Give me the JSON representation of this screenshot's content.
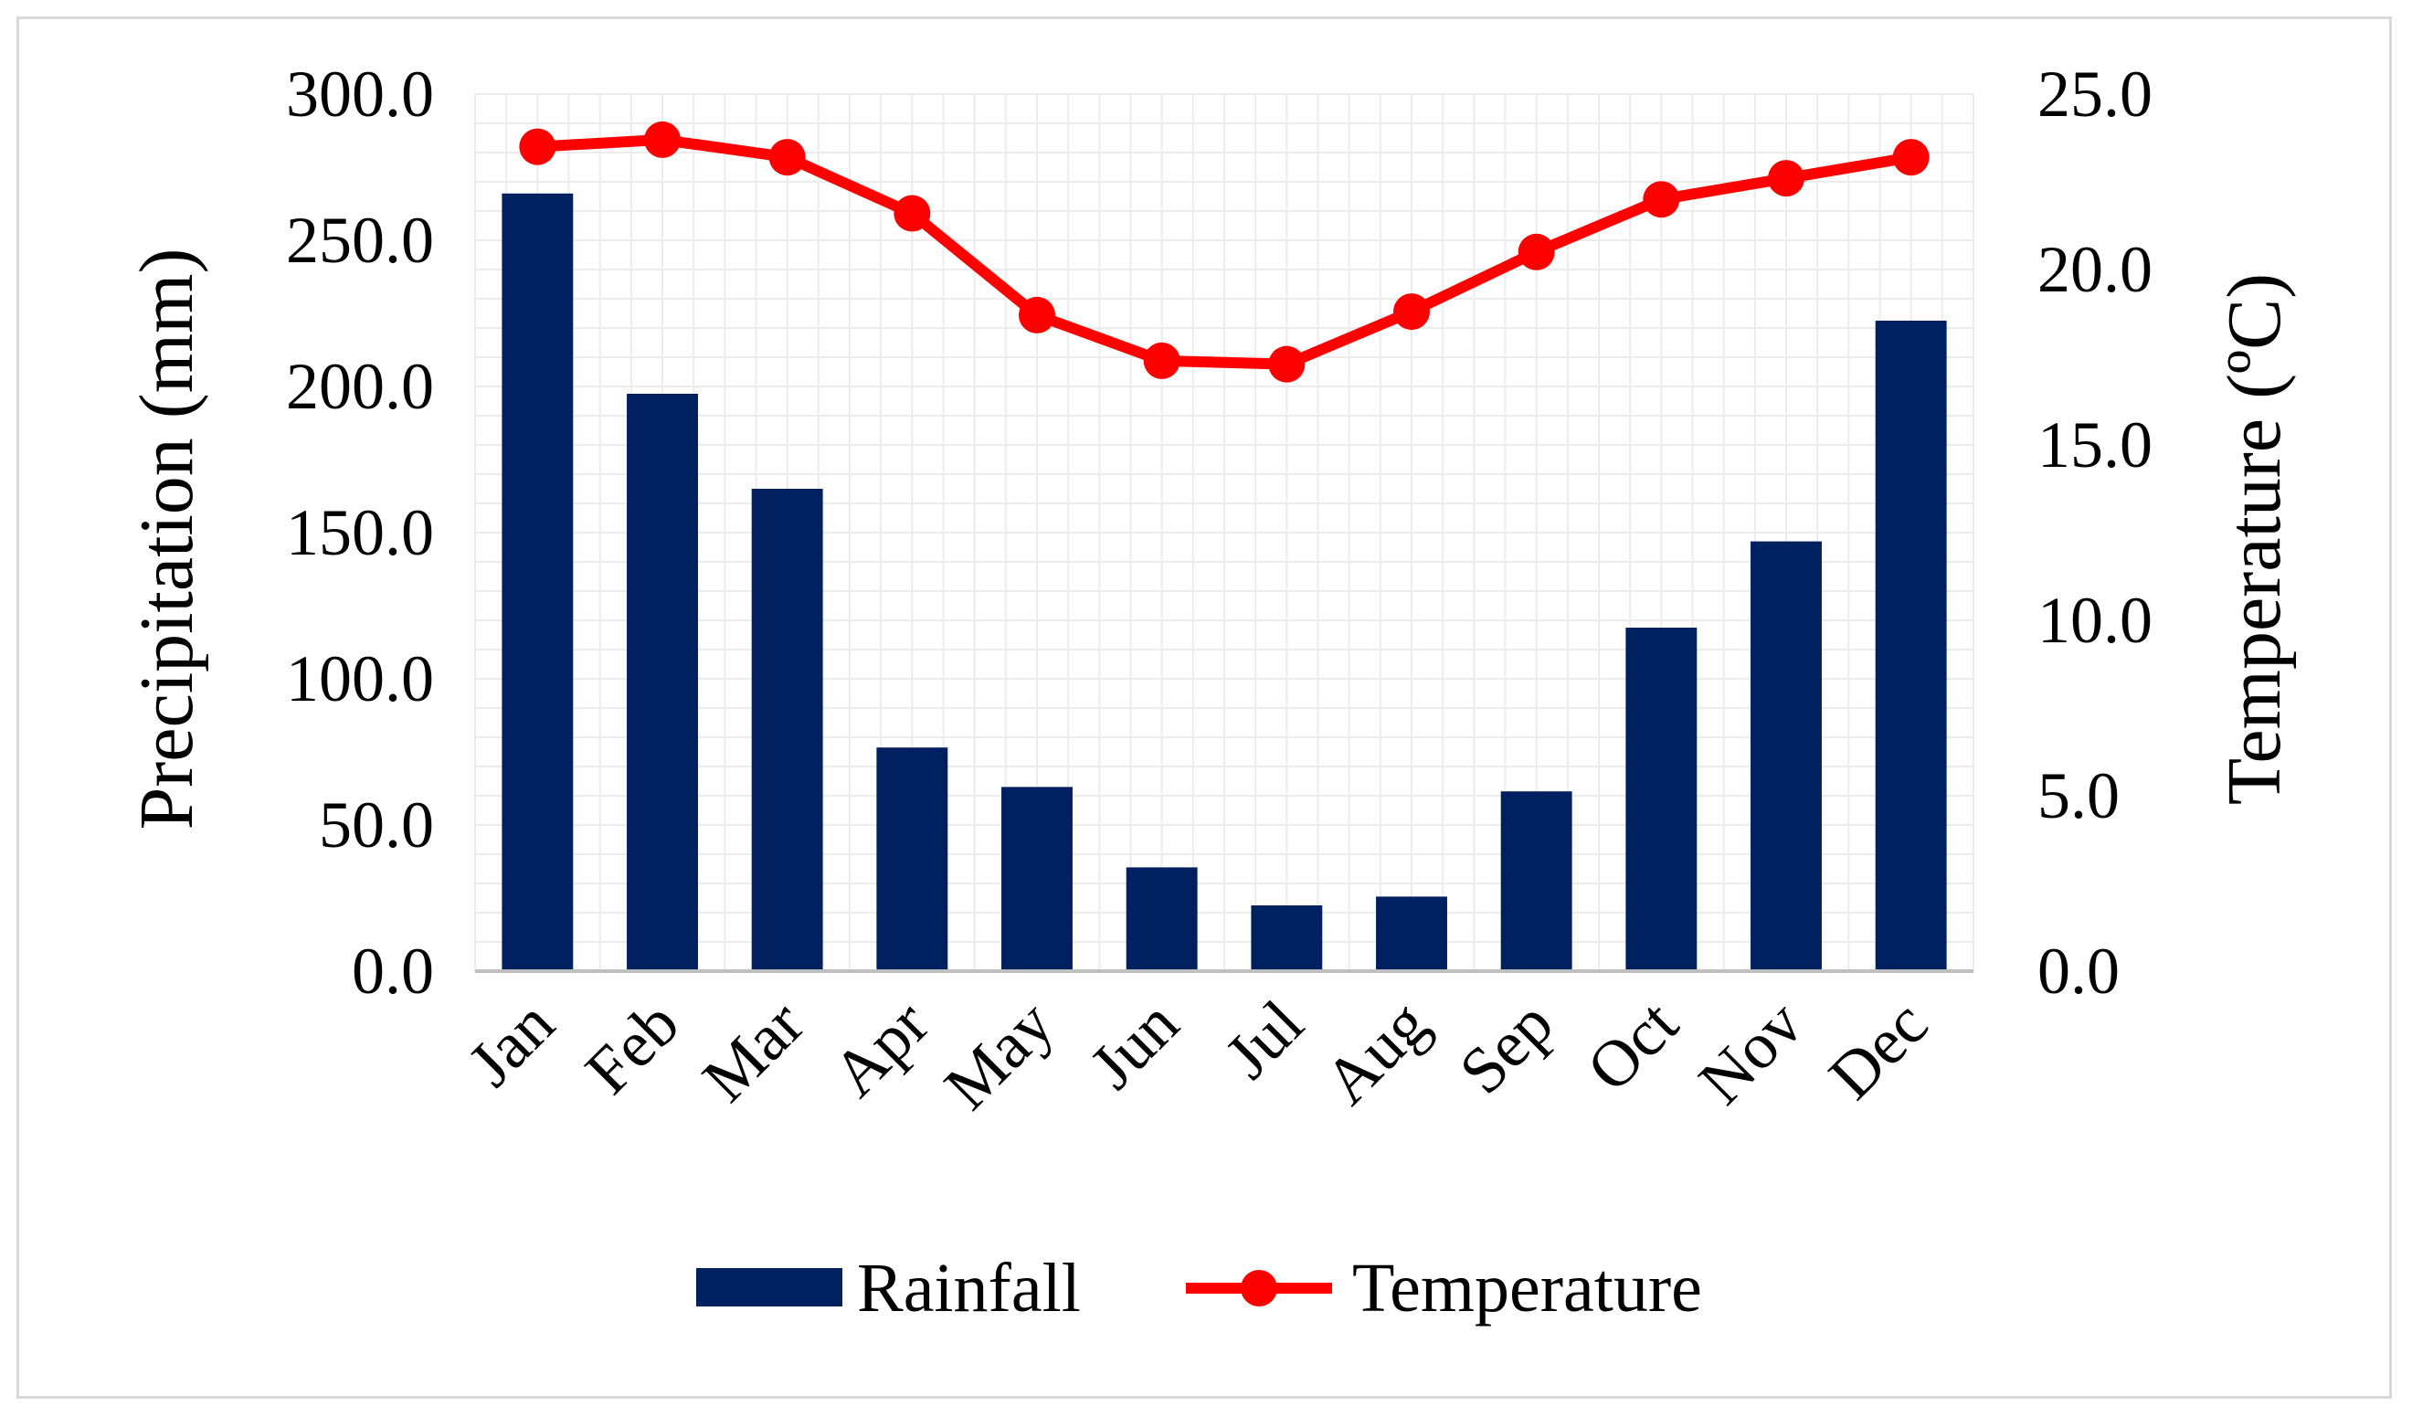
{
  "chart_data": {
    "type": "bar+line",
    "categories": [
      "Jan",
      "Feb",
      "Mar",
      "Apr",
      "May",
      "Jun",
      "Jul",
      "Aug",
      "Sep",
      "Oct",
      "Nov",
      "Dec"
    ],
    "series": [
      {
        "name": "Rainfall",
        "type": "bar",
        "axis": "left",
        "color": "#002060",
        "values": [
          266.0,
          197.5,
          165.0,
          76.5,
          63.0,
          35.5,
          22.5,
          25.5,
          61.5,
          117.5,
          147.0,
          222.5
        ]
      },
      {
        "name": "Temperature",
        "type": "line",
        "axis": "right",
        "color": "#ff0000",
        "values": [
          23.5,
          23.7,
          23.2,
          21.6,
          18.7,
          17.4,
          17.3,
          18.8,
          20.5,
          22.0,
          22.6,
          23.2
        ]
      }
    ],
    "ylabel_left": "Precipitation  (mm)",
    "ylabel_right": "Temperature (ºC)",
    "ylim_left": [
      0,
      300
    ],
    "ylim_right": [
      0,
      25
    ],
    "yticks_left": [
      "0.0",
      "50.0",
      "100.0",
      "150.0",
      "200.0",
      "250.0",
      "300.0"
    ],
    "yticks_right": [
      "0.0",
      "5.0",
      "10.0",
      "15.0",
      "20.0",
      "25.0"
    ],
    "grid": true,
    "legend_position": "bottom",
    "legend": [
      "Rainfall",
      "Temperature"
    ]
  }
}
